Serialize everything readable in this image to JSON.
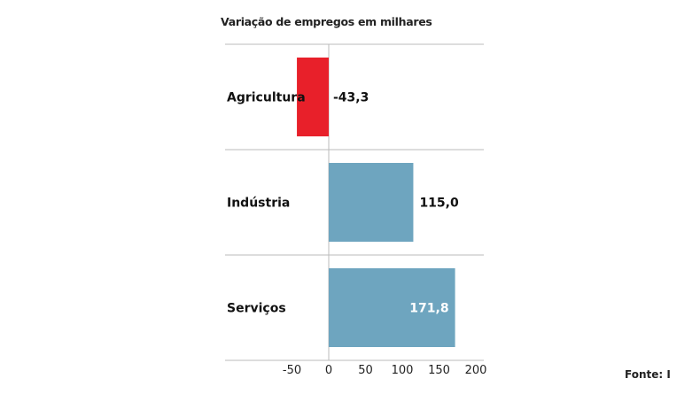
{
  "chart_data": {
    "type": "bar",
    "orientation": "horizontal",
    "title": "Variação de empregos em milhares",
    "categories": [
      "Agricultura",
      "Indústria",
      "Serviços"
    ],
    "values": [
      -43.3,
      115.0,
      171.8
    ],
    "value_labels": [
      "-43,3",
      "115,0",
      "171,8"
    ],
    "colors": [
      "#e8202a",
      "#6ea5bf",
      "#6ea5bf"
    ],
    "xlim": [
      -50,
      200
    ],
    "xticks": [
      -50,
      0,
      50,
      100,
      150,
      200
    ],
    "xtick_labels": [
      "-50",
      "0",
      "50",
      "100",
      "150",
      "200"
    ],
    "xlabel": "",
    "ylabel": "",
    "grid": true
  },
  "source": "Fonte: I"
}
